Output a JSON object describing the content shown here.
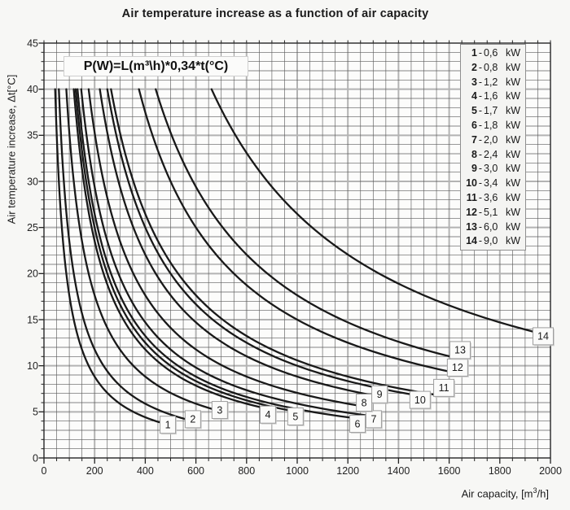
{
  "title": "Air temperature increase as a function of air capacity",
  "formula": "P(W)=L(m³\\h)*0,34*t(°C)",
  "y_axis_title": "Air temperature increase, Δt[°C]",
  "x_axis_title": {
    "prefix": "Air capacity, [m",
    "sup": "3",
    "suffix": "/h]"
  },
  "chart_data": {
    "type": "line",
    "title": "Air temperature increase as a function of air capacity",
    "xlabel": "Air capacity, [m³/h]",
    "ylabel": "Air temperature increase, Δt[°C]",
    "xlim": [
      0,
      2000
    ],
    "ylim": [
      0,
      45
    ],
    "x_ticks": [
      0,
      200,
      400,
      600,
      800,
      1000,
      1200,
      1400,
      1600,
      1800,
      2000
    ],
    "y_ticks": [
      0,
      5,
      10,
      15,
      20,
      25,
      30,
      35,
      40,
      45
    ],
    "x_minor_step": 50,
    "y_minor_step": 1,
    "grid": true,
    "legend_position": "top-right",
    "formula": "P(W)=L(m³\\h)*0,34*t(°C)",
    "relationship": "delta_t = power_w / (0.34 * L)",
    "t_max": 40,
    "series": [
      {
        "id": 1,
        "label": "1",
        "power_label": "0,6",
        "power_kw": 0.6,
        "unit": "kW",
        "x_end": 455,
        "label_at": [
          489,
          3.6
        ]
      },
      {
        "id": 2,
        "label": "2",
        "power_label": "0,8",
        "power_kw": 0.8,
        "unit": "kW",
        "x_end": 560,
        "label_at": [
          588,
          4.2
        ]
      },
      {
        "id": 3,
        "label": "3",
        "power_label": "1,2",
        "power_kw": 1.2,
        "unit": "kW",
        "x_end": 665,
        "label_at": [
          694,
          5.2
        ]
      },
      {
        "id": 4,
        "label": "4",
        "power_label": "1,6",
        "power_kw": 1.6,
        "unit": "kW",
        "x_end": 855,
        "label_at": [
          884,
          4.7
        ]
      },
      {
        "id": 5,
        "label": "5",
        "power_label": "1,7",
        "power_kw": 1.7,
        "unit": "kW",
        "x_end": 965,
        "label_at": [
          993,
          4.5
        ]
      },
      {
        "id": 6,
        "label": "6",
        "power_label": "1,8",
        "power_kw": 1.8,
        "unit": "kW",
        "x_end": 1210,
        "label_at": [
          1238,
          3.7
        ]
      },
      {
        "id": 7,
        "label": "7",
        "power_label": "2,0",
        "power_kw": 2.0,
        "unit": "kW",
        "x_end": 1270,
        "label_at": [
          1302,
          4.2
        ]
      },
      {
        "id": 8,
        "label": "8",
        "power_label": "2,4",
        "power_kw": 2.4,
        "unit": "kW",
        "x_end": 1235,
        "label_at": [
          1264,
          6.0
        ]
      },
      {
        "id": 9,
        "label": "9",
        "power_label": "3,0",
        "power_kw": 3.0,
        "unit": "kW",
        "x_end": 1295,
        "label_at": [
          1325,
          6.9
        ]
      },
      {
        "id": 10,
        "label": "10",
        "power_label": "3,4",
        "power_kw": 3.4,
        "unit": "kW",
        "x_end": 1455,
        "label_at": [
          1485,
          6.3
        ]
      },
      {
        "id": 11,
        "label": "11",
        "power_label": "3,6",
        "power_kw": 3.6,
        "unit": "kW",
        "x_end": 1545,
        "label_at": [
          1579,
          7.6
        ]
      },
      {
        "id": 12,
        "label": "12",
        "power_label": "5,1",
        "power_kw": 5.1,
        "unit": "kW",
        "x_end": 1600,
        "label_at": [
          1633,
          9.8
        ]
      },
      {
        "id": 13,
        "label": "13",
        "power_label": "6,0",
        "power_kw": 6.0,
        "unit": "kW",
        "x_end": 1610,
        "label_at": [
          1643,
          11.7
        ]
      },
      {
        "id": 14,
        "label": "14",
        "power_label": "9,0",
        "power_kw": 9.0,
        "unit": "kW",
        "x_end": 1935,
        "label_at": [
          1971,
          13.2
        ]
      }
    ],
    "colors": {
      "curve": "#191919",
      "grid_minor": "#5c5c5c",
      "grid_major": "#b3b3b3",
      "frame": "#262626",
      "plot_bg": "#fcfcfb",
      "page_bg": "#f7f7f5",
      "box_bg": "#fbfbfa",
      "box_border": "#9d9d9d"
    }
  }
}
